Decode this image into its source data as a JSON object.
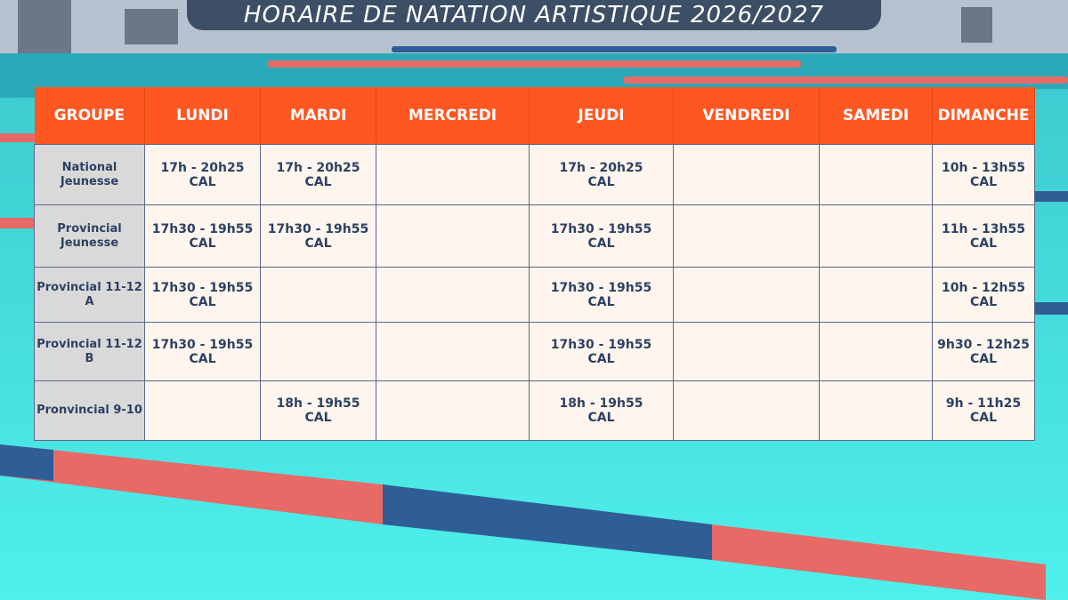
{
  "header": {
    "title": "HORAIRE DE NATATION ARTISTIQUE 2026/2027"
  },
  "table": {
    "columns": [
      "GROUPE",
      "LUNDI",
      "MARDI",
      "MERCREDI",
      "JEUDI",
      "VENDREDI",
      "SAMEDI",
      "DIMANCHE"
    ],
    "rows": [
      {
        "group": [
          "National",
          "Jeunesse"
        ],
        "cells": [
          {
            "time": "17h - 20h25",
            "place": "CAL"
          },
          {
            "time": "17h - 20h25",
            "place": "CAL"
          },
          null,
          {
            "time": "17h - 20h25",
            "place": "CAL"
          },
          null,
          null,
          {
            "time": "10h - 13h55",
            "place": "CAL"
          }
        ]
      },
      {
        "group": [
          "Provincial",
          "Jeunesse"
        ],
        "cells": [
          {
            "time": "17h30 - 19h55",
            "place": "CAL"
          },
          {
            "time": "17h30 - 19h55",
            "place": "CAL"
          },
          null,
          {
            "time": "17h30 - 19h55",
            "place": "CAL"
          },
          null,
          null,
          {
            "time": "11h - 13h55",
            "place": "CAL"
          }
        ]
      },
      {
        "group": [
          "Provincial 11-12 A"
        ],
        "cells": [
          {
            "time": "17h30 - 19h55",
            "place": "CAL"
          },
          null,
          null,
          {
            "time": "17h30 - 19h55",
            "place": "CAL"
          },
          null,
          null,
          {
            "time": "10h - 12h55",
            "place": "CAL"
          }
        ]
      },
      {
        "group": [
          "Provincial 11-12 B"
        ],
        "cells": [
          {
            "time": "17h30 - 19h55",
            "place": "CAL"
          },
          null,
          null,
          {
            "time": "17h30 - 19h55",
            "place": "CAL"
          },
          null,
          null,
          {
            "time": "9h30 - 12h25",
            "place": "CAL"
          }
        ]
      },
      {
        "group": [
          "Pronvincial 9-10"
        ],
        "cells": [
          null,
          {
            "time": "18h - 19h55",
            "place": "CAL"
          },
          null,
          {
            "time": "18h - 19h55",
            "place": "CAL"
          },
          null,
          null,
          {
            "time": "9h - 11h25",
            "place": "CAL"
          }
        ]
      }
    ]
  }
}
